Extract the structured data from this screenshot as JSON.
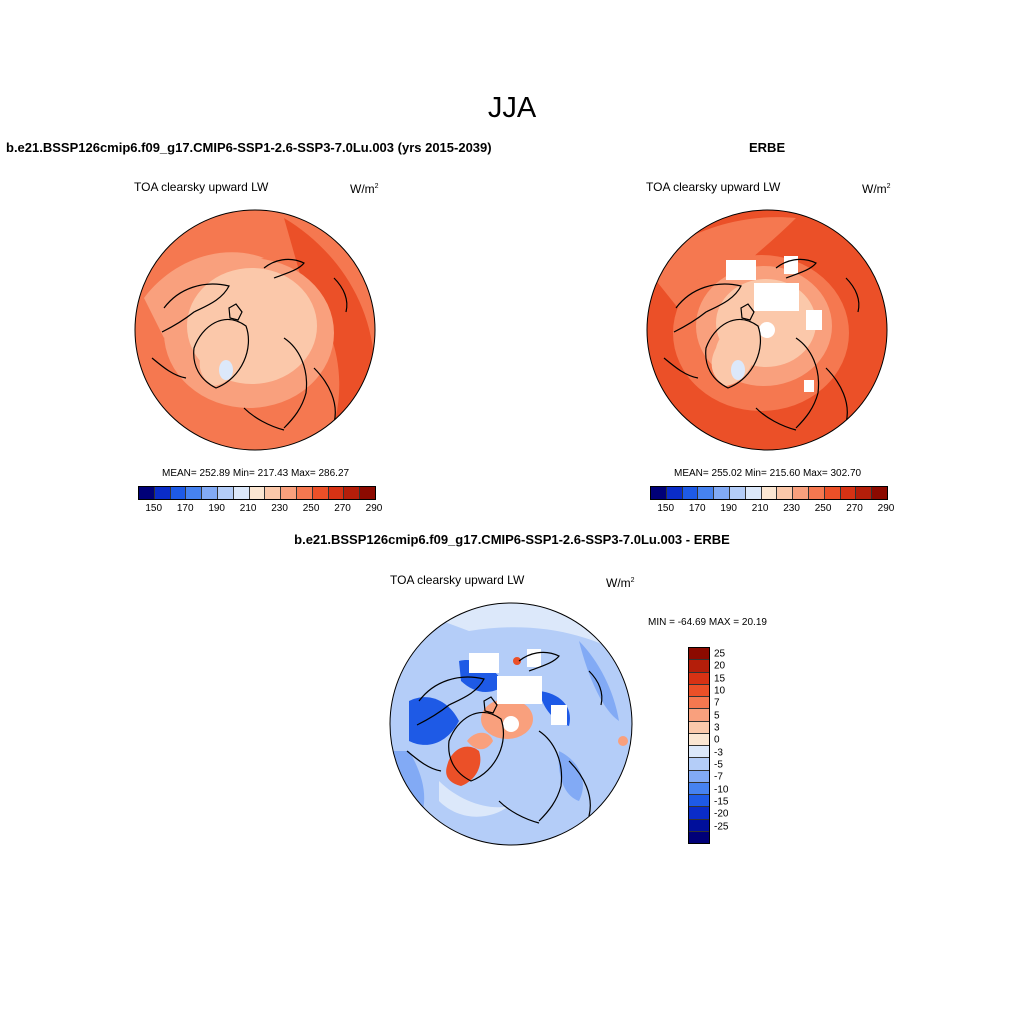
{
  "page": {
    "title": "JJA"
  },
  "panel_left": {
    "title": "b.e21.BSSP126cmip6.f09_g17.CMIP6-SSP1-2.6-SSP3-7.0Lu.003 (yrs 2015-2039)",
    "variable": "TOA clearsky upward LW",
    "unit": "W/m",
    "unit_exp": "2",
    "stats": "MEAN= 252.89  Min= 217.43  Max= 286.27"
  },
  "panel_right": {
    "title": "ERBE",
    "variable": "TOA clearsky upward LW",
    "unit": "W/m",
    "unit_exp": "2",
    "stats": "MEAN= 255.02  Min= 215.60  Max= 302.70"
  },
  "panel_diff": {
    "title": "b.e21.BSSP126cmip6.f09_g17.CMIP6-SSP1-2.6-SSP3-7.0Lu.003 - ERBE",
    "variable": "TOA clearsky upward LW",
    "unit": "W/m",
    "unit_exp": "2",
    "stats": "MIN = -64.69 MAX =  20.19"
  },
  "colorbar_abs": {
    "colors": [
      "#000078",
      "#0a2cc8",
      "#1e5ae6",
      "#4682f0",
      "#82aaf5",
      "#b4cdf8",
      "#dce8fa",
      "#fbe6d2",
      "#fbc8aa",
      "#f9a07d",
      "#f57850",
      "#eb5028",
      "#d73214",
      "#b41e0a",
      "#8c0a00"
    ],
    "labels": [
      "150",
      "170",
      "190",
      "210",
      "230",
      "250",
      "270",
      "290"
    ]
  },
  "colorbar_diff": {
    "colors_top_to_bottom": [
      "#8c0a00",
      "#b41e0a",
      "#d73214",
      "#eb5028",
      "#f57850",
      "#f9a07d",
      "#fbc8aa",
      "#fbe6d2",
      "#dce8fa",
      "#b4cdf8",
      "#82aaf5",
      "#4682f0",
      "#1e5ae6",
      "#0a2cc8",
      "#000f9b",
      "#000078"
    ],
    "labels": [
      "25",
      "20",
      "15",
      "10",
      "7",
      "5",
      "3",
      "0",
      "-3",
      "-5",
      "-7",
      "-10",
      "-15",
      "-20",
      "-25"
    ]
  },
  "map_colors": {
    "abs_land_low": "#fbc8aa",
    "abs_mid": "#f9a07d",
    "abs_high": "#f57850",
    "abs_peak": "#eb5028",
    "abs_greenland": "#dce8fa",
    "diff_neg_light": "#b4cdf8",
    "diff_neg_mid": "#82aaf5",
    "diff_neg_strong": "#1e5ae6",
    "diff_pos": "#f9a07d",
    "diff_pos_strong": "#eb5028",
    "diff_neutral": "#dce8fa"
  }
}
